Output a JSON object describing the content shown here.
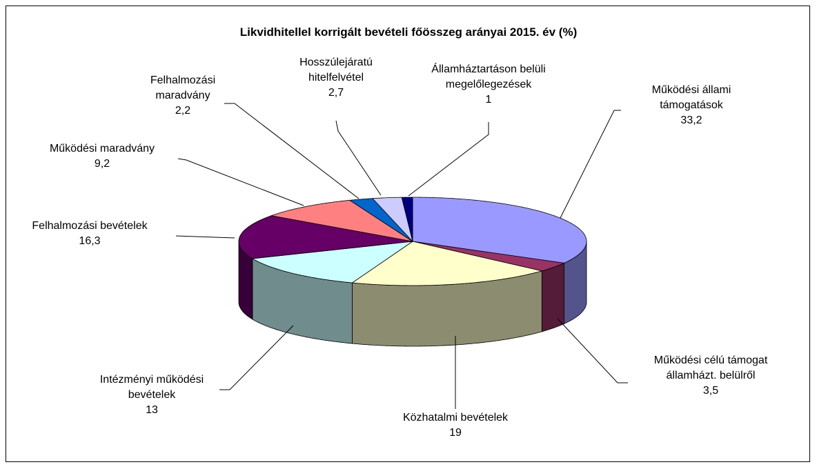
{
  "chart_data": {
    "type": "pie3d",
    "title": "Likvidhitellel korrigált bevételi főösszeg arányai 2015. év (%)",
    "categories": [
      "Működési állami támogatások",
      "Működési célú támogat államházt. belülről",
      "Közhatalmi bevételek",
      "Intézményi működési bevételek",
      "Felhalmozási bevételek",
      "Működési maradvány",
      "Felhalmozási maradvány",
      "Hosszúlejáratú hitelfelvétel",
      "Államháztartáson belüli megelőlegezések"
    ],
    "values": [
      33.2,
      3.5,
      19,
      13,
      16.3,
      9.2,
      2.2,
      2.7,
      1
    ],
    "value_labels": [
      "33,2",
      "3,5",
      "19",
      "13",
      "16,3",
      "9,2",
      "2,2",
      "2,7",
      "1"
    ],
    "colors": [
      "#9999ff",
      "#993366",
      "#ffffcc",
      "#ccffff",
      "#660066",
      "#ff8080",
      "#0066cc",
      "#ccccff",
      "#000080"
    ]
  }
}
